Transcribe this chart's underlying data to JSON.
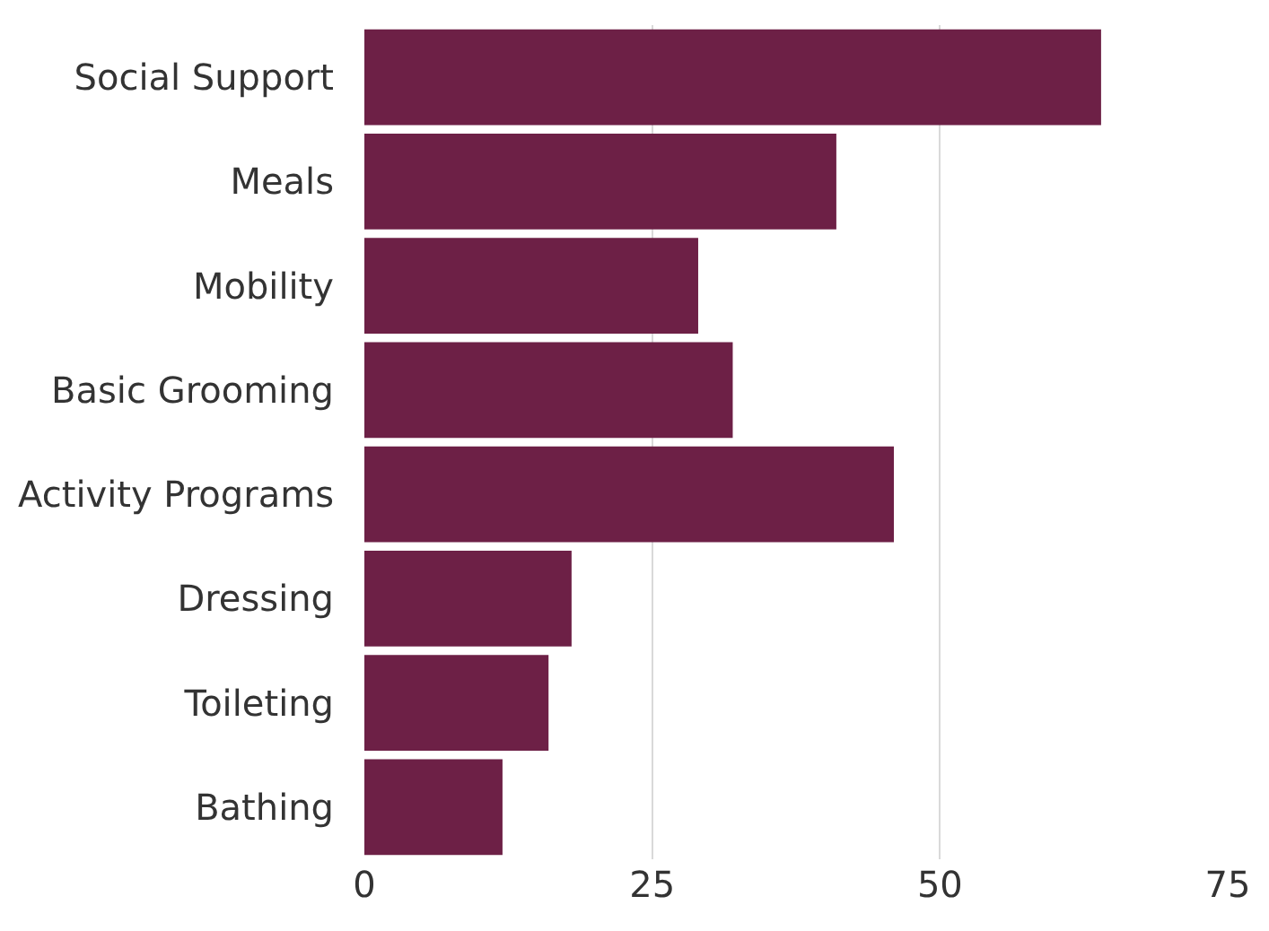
{
  "chart_data": {
    "type": "bar",
    "orientation": "horizontal",
    "categories": [
      "Social Support",
      "Meals",
      "Mobility",
      "Basic Grooming",
      "Activity Programs",
      "Dressing",
      "Toileting",
      "Bathing"
    ],
    "values": [
      64,
      41,
      29,
      32,
      46,
      18,
      16,
      12
    ],
    "color": "#6d2046",
    "xlim": [
      0,
      75
    ],
    "xticks": [
      0,
      25,
      50,
      75
    ],
    "grid": "x",
    "legend": false
  }
}
